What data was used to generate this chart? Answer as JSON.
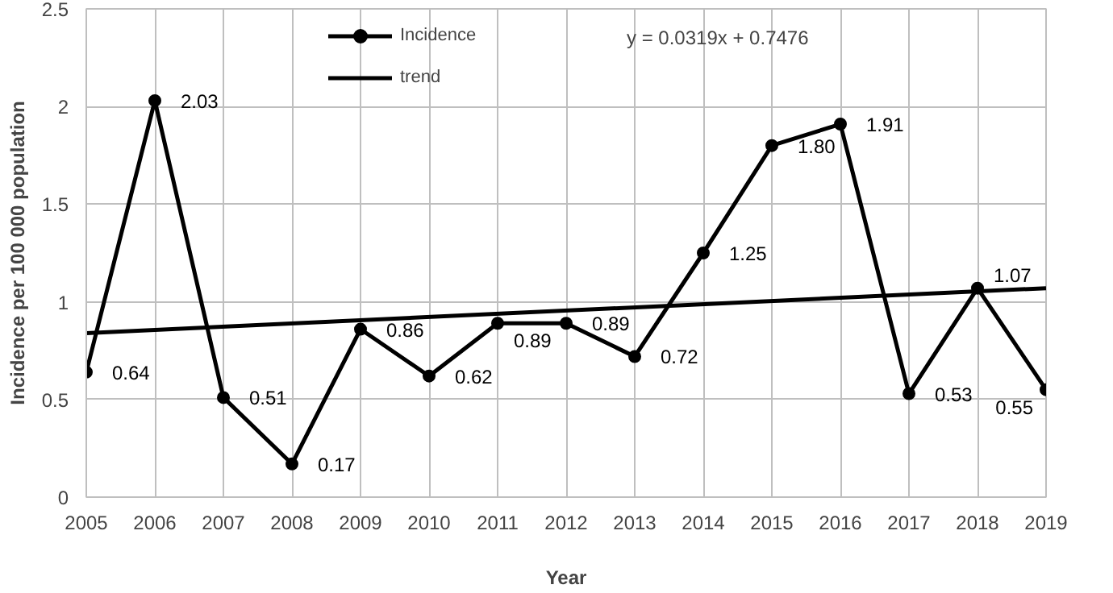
{
  "chart_data": {
    "type": "line",
    "xlabel": "Year",
    "ylabel": "Incidence per 100 000 population",
    "x": [
      2005,
      2006,
      2007,
      2008,
      2009,
      2010,
      2011,
      2012,
      2013,
      2014,
      2015,
      2016,
      2017,
      2018,
      2019
    ],
    "xlim": [
      2005,
      2019
    ],
    "xticks": [
      2005,
      2006,
      2007,
      2008,
      2009,
      2010,
      2011,
      2012,
      2013,
      2014,
      2015,
      2016,
      2017,
      2018,
      2019
    ],
    "ylim": [
      0,
      2.5
    ],
    "yticks": [
      0,
      0.5,
      1,
      1.5,
      2,
      2.5
    ],
    "series": [
      {
        "name": "Incidence",
        "color": "#000000",
        "marker": "circle",
        "values": [
          0.64,
          2.03,
          0.51,
          0.17,
          0.86,
          0.62,
          0.89,
          0.89,
          0.72,
          1.25,
          1.8,
          1.91,
          0.53,
          1.07,
          0.55
        ],
        "value_labels": [
          "0.64",
          "2.03",
          "0.51",
          "0.17",
          "0.86",
          "0.62",
          "0.89",
          "0.89",
          "0.72",
          "1.25",
          "1.80",
          "1.91",
          "0.53",
          "1.07",
          "0.55"
        ]
      },
      {
        "name": "trend",
        "color": "#000000",
        "marker": "none",
        "x": [
          2005,
          2019
        ],
        "values": [
          0.84,
          1.07
        ]
      }
    ],
    "annotations": [
      "y = 0.0319x + 0.7476"
    ],
    "grid": true,
    "legend": "top",
    "line_style": "solid"
  }
}
